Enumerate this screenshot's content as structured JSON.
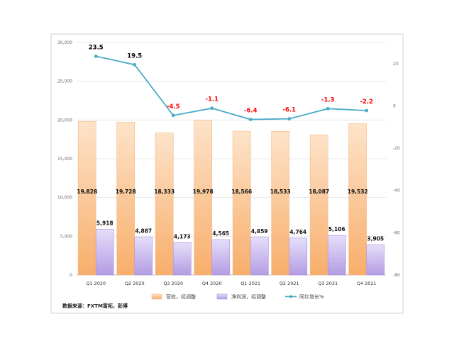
{
  "chart_data": {
    "type": "bar",
    "categories": [
      "Q1 2020",
      "Q2 2020",
      "Q3 2020",
      "Q4 2020",
      "Q1 2021",
      "Q2 2021",
      "Q3 2021",
      "Q4 2021"
    ],
    "series": [
      {
        "name": "营收，经调整",
        "type": "bar",
        "axis": "left",
        "values": [
          19828,
          19728,
          18333,
          19978,
          18566,
          18533,
          18087,
          19532
        ],
        "labels": [
          "19,828",
          "19,728",
          "18,333",
          "19,978",
          "18,566",
          "18,533",
          "18,087",
          "19,532"
        ],
        "color": "#f9c79b"
      },
      {
        "name": "净利润，经调整",
        "type": "bar",
        "axis": "left",
        "values": [
          5918,
          4887,
          4173,
          4565,
          4859,
          4764,
          5106,
          3905
        ],
        "labels": [
          "5,918",
          "4,887",
          "4,173",
          "4,565",
          "4,859",
          "4,764",
          "5,106",
          "3,905"
        ],
        "color": "#c9b8ec"
      },
      {
        "name": "同比增长%",
        "type": "line",
        "axis": "right",
        "values": [
          23.5,
          19.5,
          -4.5,
          -1.1,
          -6.4,
          -6.1,
          -1.3,
          -2.2
        ],
        "labels": [
          "23.5",
          "19.5",
          "-4.5",
          "-1.1",
          "-6.4",
          "-6.1",
          "-1.3",
          "-2.2"
        ],
        "color": "#4bacc6",
        "positive_label_color": "#000000",
        "negative_label_color": "#ff0000"
      }
    ],
    "left_axis": {
      "range": [
        0,
        30000
      ],
      "ticks": [
        "0",
        "5,000",
        "10,000",
        "15,000",
        "20,000",
        "25,000",
        "30,000"
      ]
    },
    "right_axis": {
      "range": [
        -80,
        30
      ],
      "ticks": [
        "-80",
        "-60",
        "-40",
        "-20",
        "0",
        "20"
      ]
    },
    "grid": true,
    "legend": "bottom"
  },
  "source_note": "数据来源：FXTM富拓，彭博"
}
